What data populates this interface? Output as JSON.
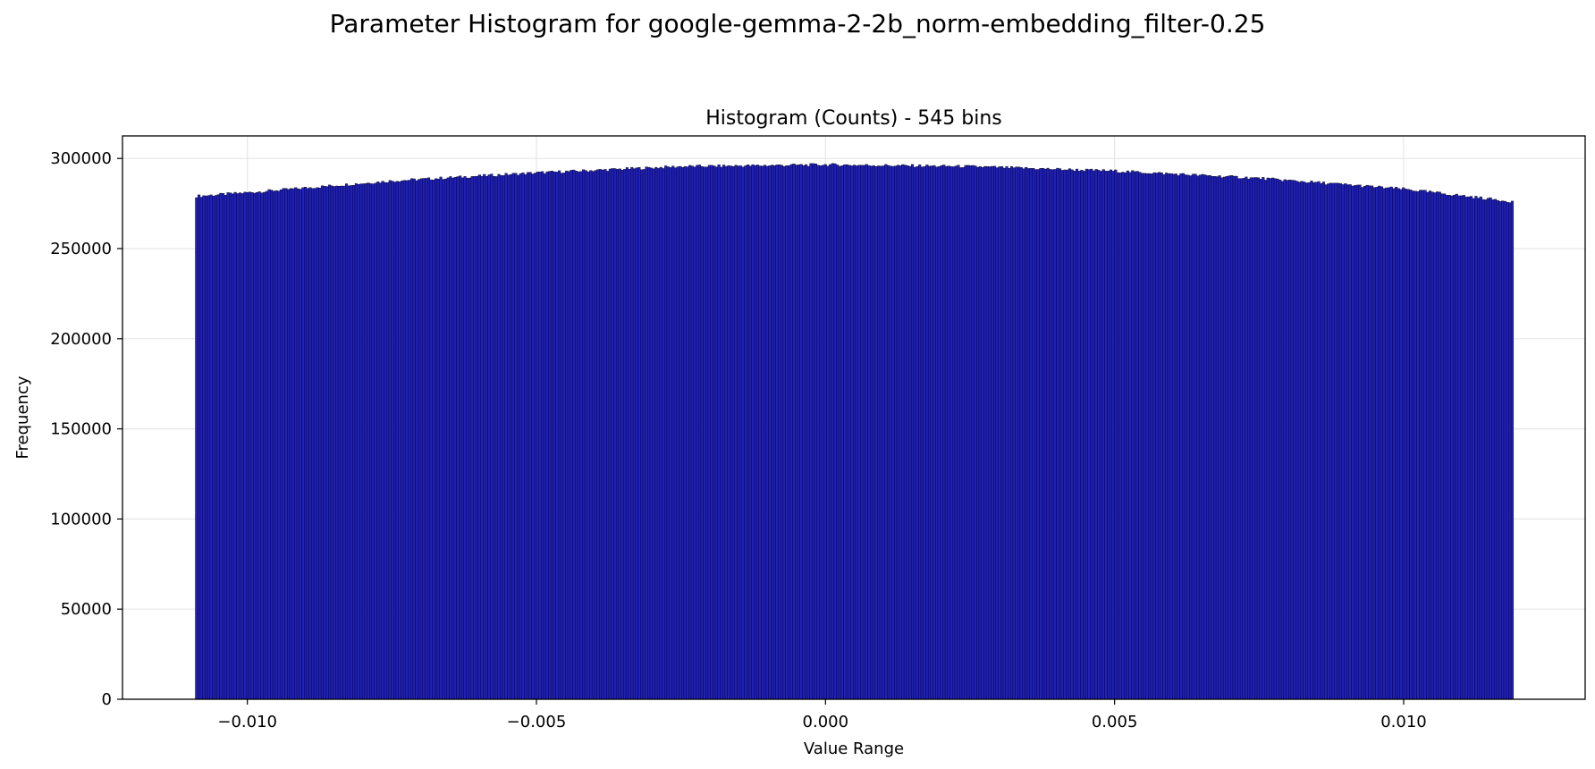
{
  "figure": {
    "suptitle": "Parameter Histogram for google-gemma-2-2b_norm-embedding_filter-0.25"
  },
  "chart_data": {
    "type": "bar",
    "title": "Histogram (Counts) - 545 bins",
    "xlabel": "Value Range",
    "ylabel": "Frequency",
    "bins": 545,
    "x_range": [
      -0.0109,
      0.0119
    ],
    "xlim": [
      -0.01216,
      0.01314
    ],
    "ylim": [
      0,
      312500
    ],
    "grid": true,
    "xticks": [
      -0.01,
      -0.005,
      0.0,
      0.005,
      0.01
    ],
    "xtick_labels": [
      "−0.010",
      "−0.005",
      "0.000",
      "0.005",
      "0.010"
    ],
    "yticks": [
      0,
      50000,
      100000,
      150000,
      200000,
      250000,
      300000
    ],
    "ytick_labels": [
      "0",
      "50000",
      "100000",
      "150000",
      "200000",
      "250000",
      "300000"
    ],
    "profile": {
      "x": [
        -0.0109,
        -0.01,
        -0.0075,
        -0.005,
        -0.0025,
        0.0,
        0.0025,
        0.005,
        0.0075,
        0.01,
        0.0119
      ],
      "y": [
        279000,
        281000,
        287500,
        292000,
        295500,
        296500,
        295500,
        293000,
        289000,
        283000,
        276000
      ]
    },
    "colors": {
      "bar_fill": "#2020c0",
      "bar_edge": "#000000",
      "grid": "#e6e6e6"
    }
  }
}
